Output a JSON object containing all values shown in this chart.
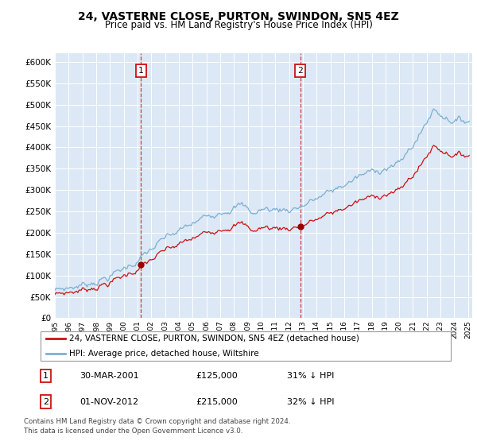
{
  "title": "24, VASTERNE CLOSE, PURTON, SWINDON, SN5 4EZ",
  "subtitle": "Price paid vs. HM Land Registry's House Price Index (HPI)",
  "ylim": [
    0,
    620000
  ],
  "ytick_vals": [
    0,
    50000,
    100000,
    150000,
    200000,
    250000,
    300000,
    350000,
    400000,
    450000,
    500000,
    550000,
    600000
  ],
  "hpi_color": "#7bafd4",
  "property_color": "#cc1111",
  "dot_color": "#990000",
  "bg_color": "#dce8f5",
  "legend_label_property": "24, VASTERNE CLOSE, PURTON, SWINDON, SN5 4EZ (detached house)",
  "legend_label_hpi": "HPI: Average price, detached house, Wiltshire",
  "sale1_date": "30-MAR-2001",
  "sale1_price": "£125,000",
  "sale1_hpi": "31% ↓ HPI",
  "sale2_date": "01-NOV-2012",
  "sale2_price": "£215,000",
  "sale2_hpi": "32% ↓ HPI",
  "footer": "Contains HM Land Registry data © Crown copyright and database right 2024.\nThis data is licensed under the Open Government Licence v3.0.",
  "sale1_year": 2001.25,
  "sale2_year": 2012.83,
  "sale1_price_val": 125000,
  "sale2_price_val": 215000
}
